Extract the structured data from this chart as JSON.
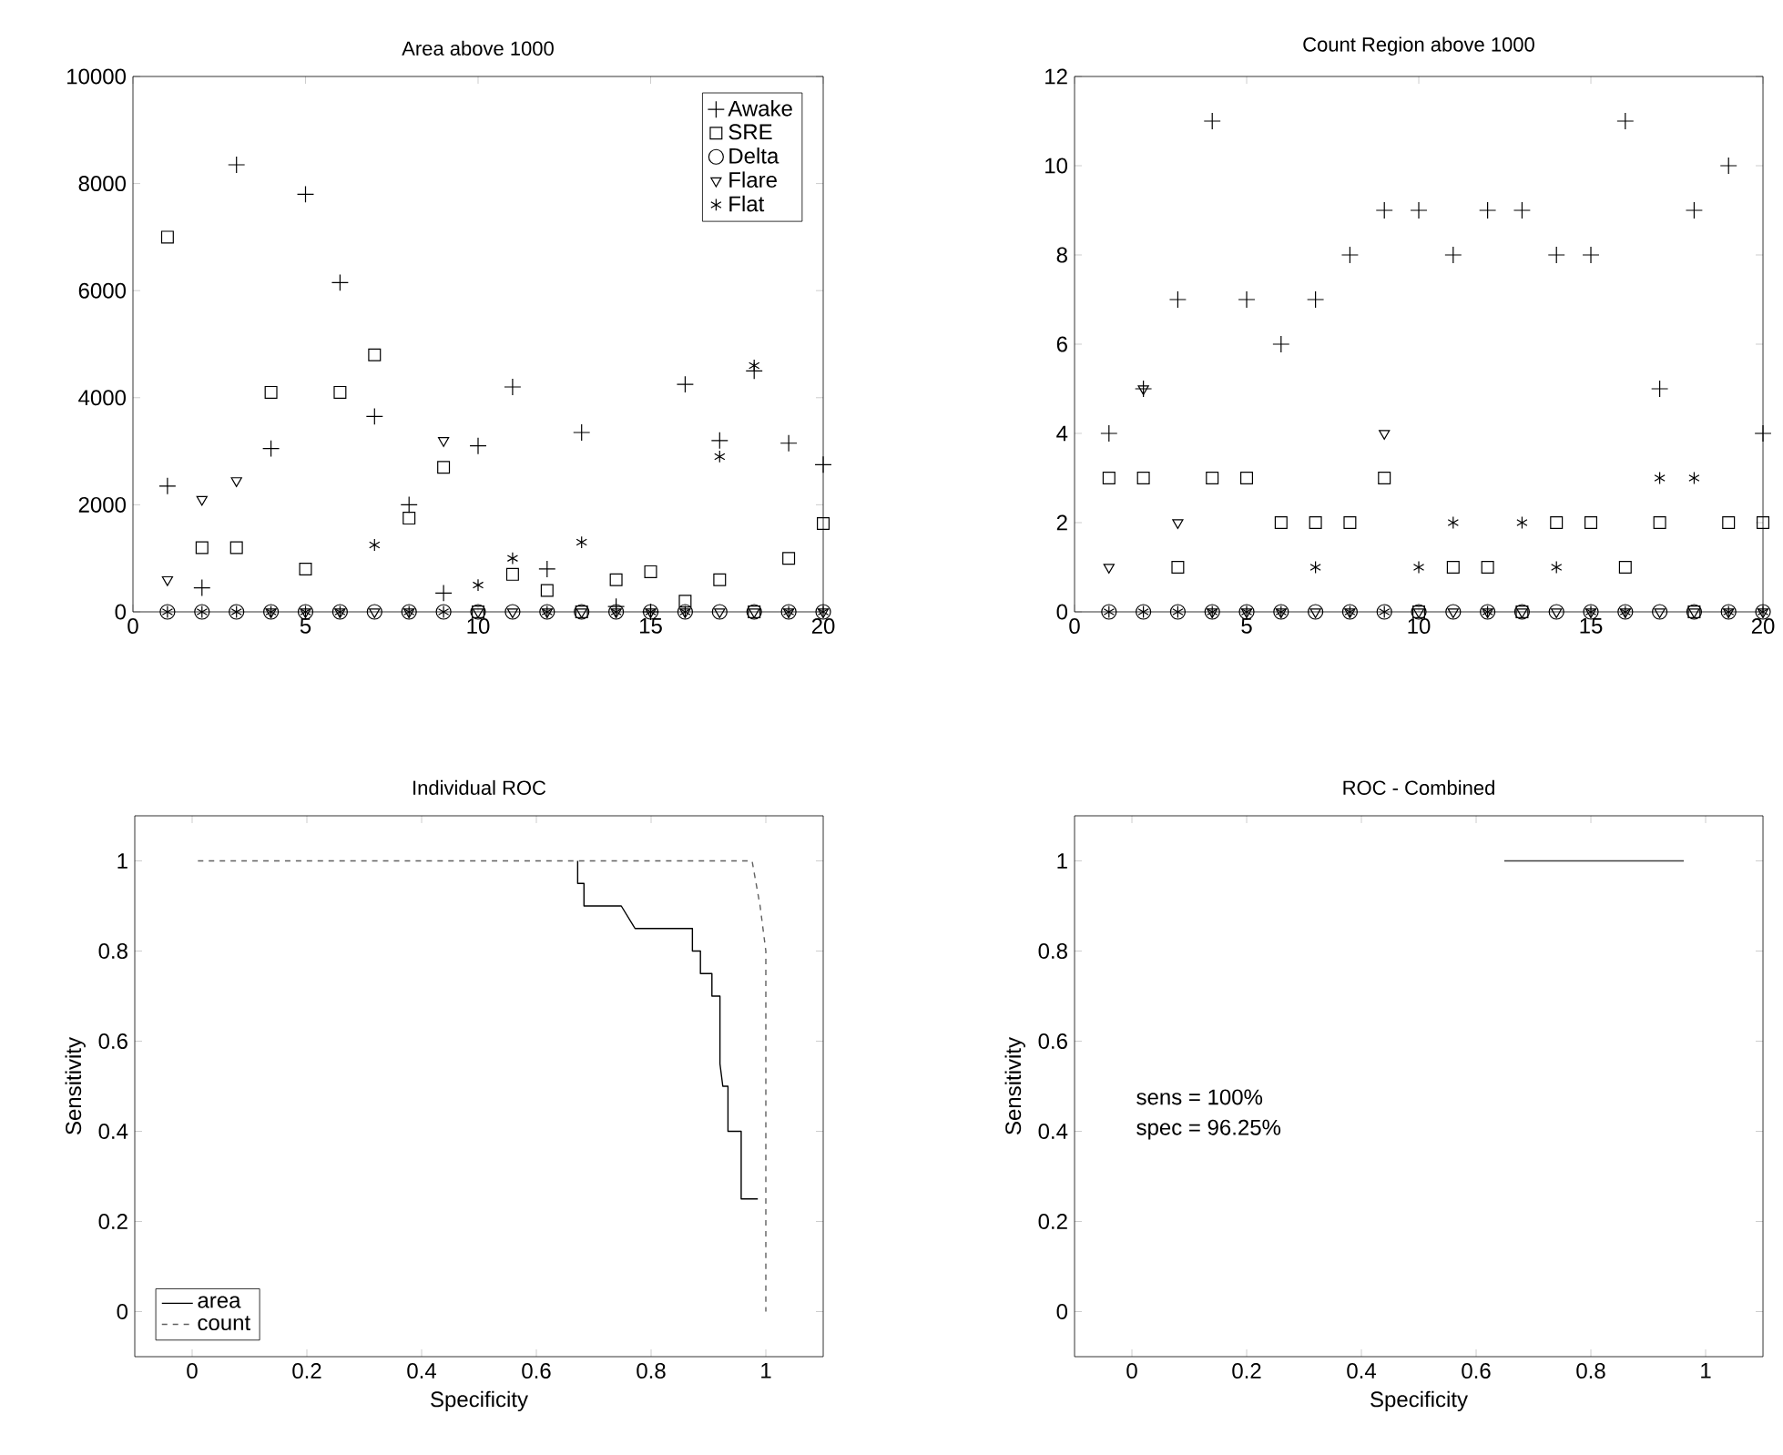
{
  "chart_data": [
    {
      "type": "scatter",
      "title": "Area above 1000",
      "x": [
        1,
        2,
        3,
        4,
        5,
        6,
        7,
        8,
        9,
        10,
        11,
        12,
        13,
        14,
        15,
        16,
        17,
        18,
        19,
        20
      ],
      "xlim": [
        0,
        20
      ],
      "ylim": [
        0,
        10000
      ],
      "xticks": [
        0,
        5,
        10,
        15,
        20
      ],
      "yticks": [
        0,
        2000,
        4000,
        6000,
        8000,
        10000
      ],
      "legend": "top right",
      "series": [
        {
          "name": "Awake",
          "color": "#000000",
          "marker": "cross",
          "values": [
            2350,
            450,
            8350,
            3050,
            7800,
            6150,
            3650,
            2000,
            350,
            3100,
            4200,
            800,
            3350,
            100,
            0,
            4250,
            3200,
            4500,
            3150,
            2750
          ]
        },
        {
          "name": "SRE",
          "color": "#000000",
          "marker": "square",
          "values": [
            7000,
            1200,
            1200,
            4100,
            800,
            4100,
            4800,
            1750,
            2700,
            0,
            700,
            400,
            0,
            600,
            750,
            200,
            600,
            0,
            1000,
            1650
          ]
        },
        {
          "name": "Delta",
          "color": "#000000",
          "marker": "circle",
          "values": [
            0,
            0,
            0,
            0,
            0,
            0,
            0,
            0,
            0,
            0,
            0,
            0,
            0,
            0,
            0,
            0,
            0,
            0,
            0,
            0
          ]
        },
        {
          "name": "Flare",
          "color": "#000000",
          "marker": "triangle",
          "values": [
            600,
            2100,
            2450,
            0,
            0,
            0,
            0,
            0,
            3200,
            0,
            0,
            0,
            0,
            0,
            0,
            0,
            0,
            0,
            0,
            0
          ]
        },
        {
          "name": "Flat",
          "color": "#000000",
          "values": [
            0,
            0,
            0,
            0,
            0,
            0,
            1250,
            0,
            0,
            500,
            1000,
            0,
            1300,
            0,
            0,
            0,
            2900,
            4600,
            0,
            0
          ]
        }
      ]
    },
    {
      "type": "scatter",
      "title": "Count Region above 1000",
      "x": [
        1,
        2,
        3,
        4,
        5,
        6,
        7,
        8,
        9,
        10,
        11,
        12,
        13,
        14,
        15,
        16,
        17,
        18,
        19,
        20
      ],
      "xlim": [
        0,
        20
      ],
      "ylim": [
        0,
        12
      ],
      "xticks": [
        0,
        5,
        10,
        15,
        20
      ],
      "yticks": [
        0,
        2,
        4,
        6,
        8,
        10,
        12
      ],
      "series": [
        {
          "color": "#000000",
          "marker": "cross",
          "values": [
            4,
            5,
            7,
            11,
            7,
            6,
            7,
            8,
            9,
            9,
            8,
            9,
            9,
            8,
            8,
            11,
            5,
            9,
            10,
            4
          ]
        },
        {
          "color": "#000000",
          "marker": "square",
          "values": [
            3,
            3,
            1,
            3,
            3,
            2,
            2,
            2,
            3,
            0,
            1,
            1,
            0,
            2,
            2,
            1,
            2,
            0,
            2,
            2
          ]
        },
        {
          "color": "#000000",
          "values": [
            0,
            0,
            0,
            0,
            0,
            0,
            0,
            0,
            0,
            0,
            0,
            0,
            0,
            0,
            0,
            0,
            0,
            0,
            0,
            0
          ]
        },
        {
          "color": "#000000",
          "marker": "triangle",
          "values": [
            1,
            5,
            2,
            0,
            0,
            0,
            0,
            0,
            4,
            0,
            0,
            0,
            0,
            0,
            0,
            0,
            0,
            0,
            0,
            0
          ]
        },
        {
          "color": "#000000",
          "values": [
            0,
            0,
            0,
            0,
            0,
            0,
            1,
            0,
            0,
            1,
            2,
            0,
            2,
            1,
            0,
            0,
            3,
            3,
            0,
            0
          ]
        }
      ]
    },
    {
      "type": "line",
      "title": "Individual ROC",
      "xlabel": "Specificity",
      "ylabel": "Sensitivity",
      "xlim": [
        -0.1,
        1.1
      ],
      "ylim": [
        -0.1,
        1.1
      ],
      "xticks": [
        0,
        0.2,
        0.4,
        0.6,
        0.8,
        1
      ],
      "yticks": [
        0,
        0.2,
        0.4,
        0.6,
        0.8,
        1
      ],
      "legend": "bottom left",
      "series": [
        {
          "name": "area",
          "color": "#000000",
          "line_style": "solid",
          "x": [
            0.672,
            0.672,
            0.683,
            0.683,
            0.748,
            0.772,
            0.872,
            0.872,
            0.886,
            0.886,
            0.906,
            0.906,
            0.92,
            0.92,
            0.925,
            0.934,
            0.934,
            0.957,
            0.957,
            0.986
          ],
          "values": [
            1,
            0.95,
            0.95,
            0.9,
            0.9,
            0.85,
            0.85,
            0.8,
            0.8,
            0.75,
            0.75,
            0.7,
            0.7,
            0.55,
            0.5,
            0.5,
            0.4,
            0.4,
            0.25,
            0.25
          ]
        },
        {
          "name": "count",
          "color": "#606060",
          "line_style": "dashed",
          "x": [
            0.01,
            0.976,
            0.99,
            1,
            1
          ],
          "values": [
            1,
            1,
            0.9,
            0.8,
            0
          ]
        }
      ]
    },
    {
      "type": "line",
      "title": "ROC - Combined",
      "xlabel": "Specificity",
      "ylabel": "Sensitivity",
      "xlim": [
        -0.1,
        1.1
      ],
      "ylim": [
        -0.1,
        1.1
      ],
      "xticks": [
        0,
        0.2,
        0.4,
        0.6,
        0.8,
        1
      ],
      "yticks": [
        0,
        0.2,
        0.4,
        0.6,
        0.8,
        1
      ],
      "annotations": [
        "sens = 100%",
        "spec = 96.25%"
      ],
      "series": [
        {
          "color": "#404040",
          "line_style": "solid",
          "x": [
            0.649,
            0.962
          ],
          "values": [
            1,
            1
          ]
        }
      ]
    }
  ]
}
